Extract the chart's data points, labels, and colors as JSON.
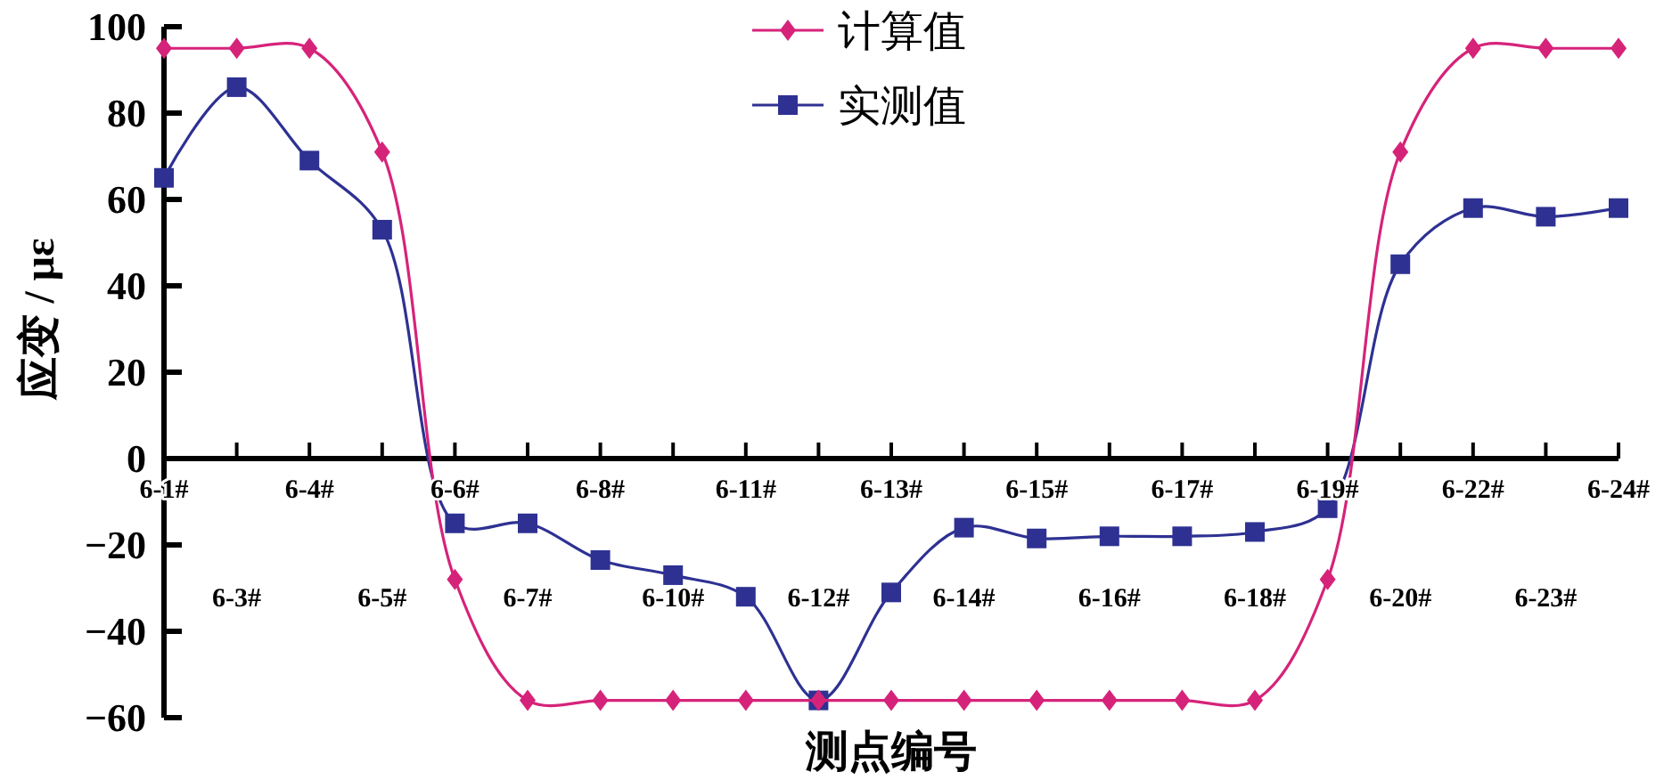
{
  "chart_data": {
    "type": "line",
    "xlabel": "测点编号",
    "ylabel": "应变 / με",
    "categories": [
      "6-1#",
      "6-3#",
      "6-4#",
      "6-5#",
      "6-6#",
      "6-7#",
      "6-8#",
      "6-10#",
      "6-11#",
      "6-12#",
      "6-13#",
      "6-14#",
      "6-15#",
      "6-16#",
      "6-17#",
      "6-18#",
      "6-19#",
      "6-20#",
      "6-22#",
      "6-23#",
      "6-24#"
    ],
    "series": [
      {
        "name": "计算值",
        "color": "#d6237a",
        "marker": "diamond",
        "values": [
          95,
          95,
          95,
          71,
          -28,
          -56,
          -56,
          -56,
          -56,
          -56,
          -56,
          -56,
          -56,
          -56,
          -56,
          -56,
          -28,
          71,
          95,
          95,
          95
        ]
      },
      {
        "name": "实测值",
        "color": "#2e3192",
        "marker": "square",
        "values": [
          65,
          86,
          69,
          53,
          -15,
          -15,
          -23.5,
          -27,
          -32,
          -56,
          -31,
          -16,
          -18.5,
          -18,
          -18,
          -17,
          -11.5,
          45,
          58,
          56,
          58
        ]
      }
    ],
    "ylim": [
      -60,
      100
    ],
    "yticks": [
      -60,
      -40,
      -20,
      0,
      20,
      40,
      60,
      80,
      100
    ],
    "grid": false,
    "legend": "top"
  }
}
